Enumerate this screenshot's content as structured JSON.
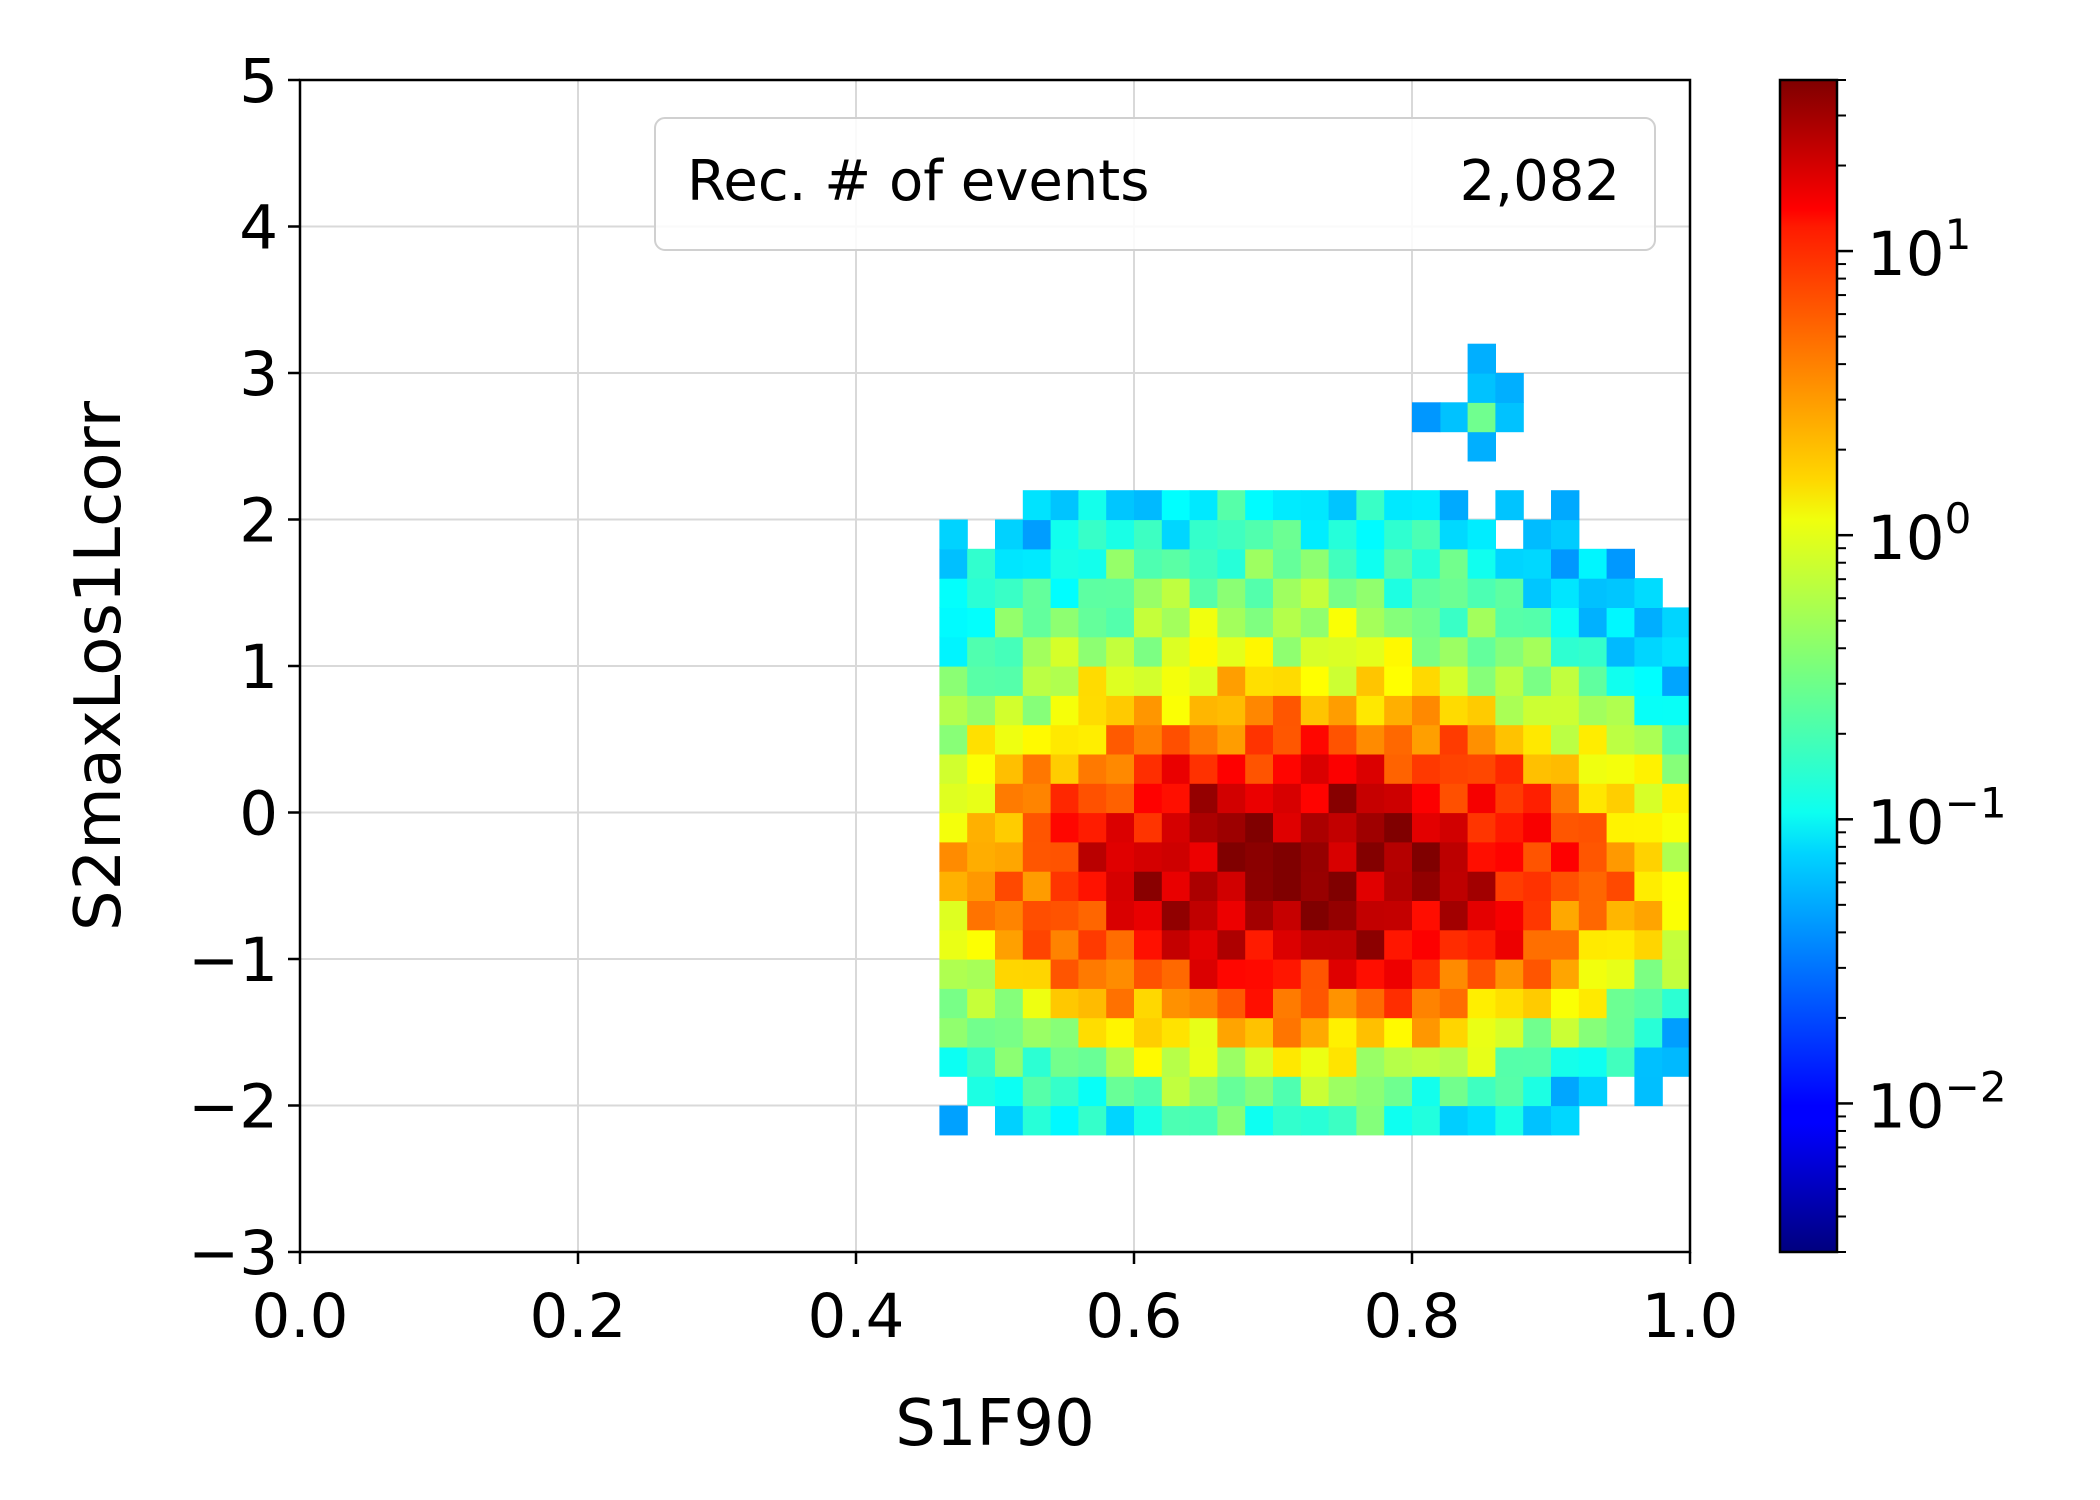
{
  "chart_data": {
    "type": "heatmap",
    "xlabel": "S1F90",
    "ylabel": "S2maxLos1Lcorr",
    "xlim": [
      0.0,
      1.0
    ],
    "ylim": [
      -3,
      5
    ],
    "x_ticks": [
      "0.0",
      "0.2",
      "0.4",
      "0.6",
      "0.8",
      "1.0"
    ],
    "y_ticks": [
      "5",
      "4",
      "3",
      "2",
      "1",
      "0",
      "−1",
      "−2",
      "−3"
    ],
    "grid": true,
    "legend": {
      "label": "Rec. # of events",
      "value": "2,082",
      "placement": "top-right"
    },
    "colorbar": {
      "scale": "log",
      "colormap": "jet",
      "range": [
        0.003,
        40
      ],
      "tick_labels": [
        {
          "base": "10",
          "exp": "1"
        },
        {
          "base": "10",
          "exp": "0"
        },
        {
          "base": "10",
          "exp": "−1"
        },
        {
          "base": "10",
          "exp": "−2"
        }
      ]
    },
    "bins": {
      "x_edges": [
        0.0,
        1.0,
        0.02
      ],
      "y_edges": [
        -3,
        5,
        0.2
      ],
      "peak": {
        "x": 0.725,
        "y": -0.4,
        "value": 35
      },
      "count_note": "smooth blob centred near S1F90 0.72, S2maxLos1Lcorr -0.4, spanning x 0.46-1.0 and y -2.2-2.1, plus a small isolated cluster near (0.85, 2.7)"
    }
  }
}
